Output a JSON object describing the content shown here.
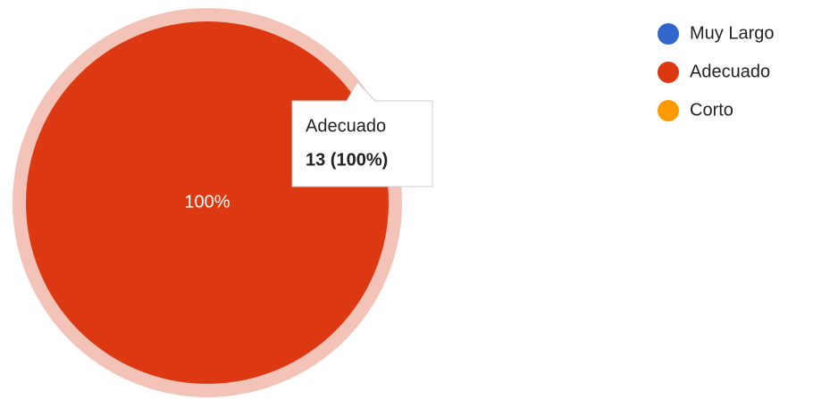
{
  "chart_data": {
    "type": "pie",
    "categories": [
      "Muy Largo",
      "Adecuado",
      "Corto"
    ],
    "values": [
      0,
      100,
      0
    ],
    "value_labels": [
      null,
      "100%",
      null
    ],
    "colors": [
      "#3366cc",
      "#dc3912",
      "#ff9900"
    ],
    "legend": "right",
    "tooltip": {
      "label": "Adecuado",
      "value": "13 (100%)"
    }
  }
}
